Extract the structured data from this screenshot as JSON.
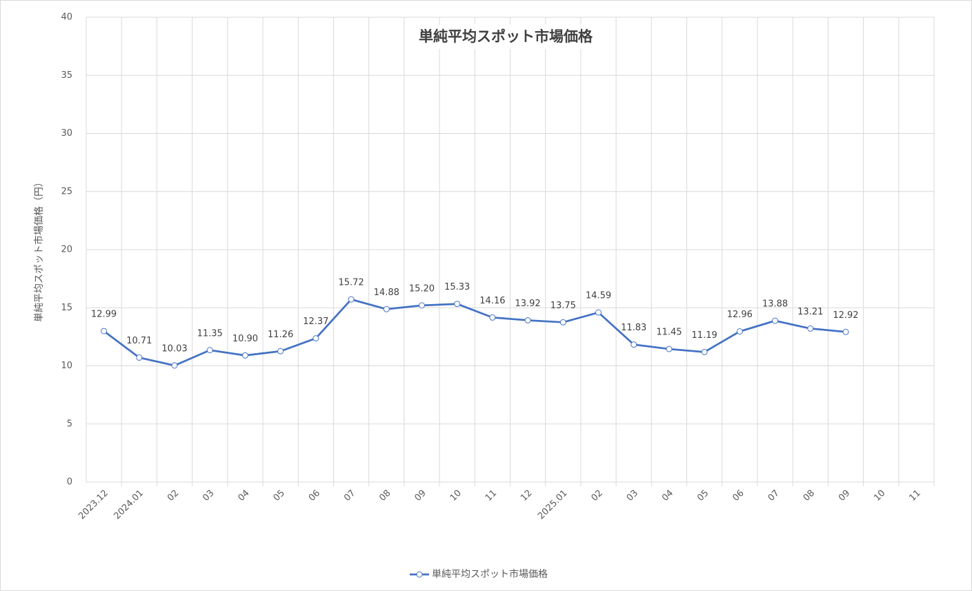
{
  "chart_data": {
    "type": "line",
    "title": "単純平均スポット市場価格",
    "ylabel": "単純平均スポット市場価格（円）",
    "categories": [
      "2023.12",
      "2024.01",
      "02",
      "03",
      "04",
      "05",
      "06",
      "07",
      "08",
      "09",
      "10",
      "11",
      "12",
      "2025.01",
      "02",
      "03",
      "04",
      "05",
      "06",
      "07",
      "08",
      "09",
      "10",
      "11"
    ],
    "series": [
      {
        "name": "単純平均スポット市場価格",
        "color": "#4472c4",
        "values": [
          12.99,
          10.71,
          10.03,
          11.35,
          10.9,
          11.26,
          12.37,
          15.72,
          14.88,
          15.2,
          15.33,
          14.16,
          13.92,
          13.75,
          14.59,
          11.83,
          11.45,
          11.19,
          12.96,
          13.88,
          13.21,
          12.92,
          null,
          null
        ],
        "value_labels": [
          "12.99",
          "10.71",
          "10.03",
          "11.35",
          "10.90",
          "11.26",
          "12.37",
          "15.72",
          "14.88",
          "15.20",
          "15.33",
          "14.16",
          "13.92",
          "13.75",
          "14.59",
          "11.83",
          "11.45",
          "11.19",
          "12.96",
          "13.88",
          "13.21",
          "12.92",
          null,
          null
        ]
      }
    ],
    "ylim": [
      0,
      40
    ],
    "yticks": [
      0,
      5,
      10,
      15,
      20,
      25,
      30,
      35,
      40
    ],
    "grid": true,
    "legend": "bottom"
  }
}
